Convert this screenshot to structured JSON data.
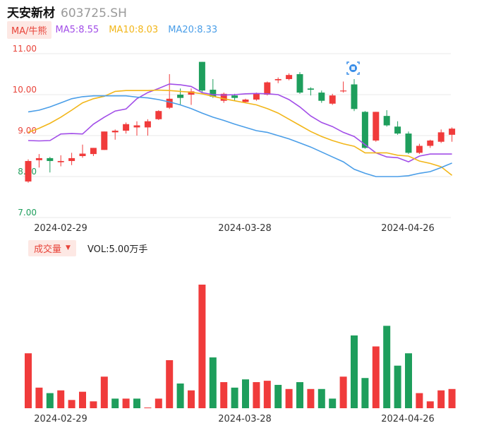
{
  "header": {
    "name": "天安新材",
    "code": "603725.SH"
  },
  "ma_bar": {
    "tag": "MA/牛熊",
    "items": [
      {
        "label": "MA5:8.55",
        "color": "#a24ee8"
      },
      {
        "label": "MA10:8.03",
        "color": "#f2b619"
      },
      {
        "label": "MA20:8.33",
        "color": "#4a9ee8"
      }
    ]
  },
  "volume_bar": {
    "tag": "成交量",
    "caret": "▼",
    "text": "VOL:5.00万手"
  },
  "colors": {
    "up": "#f03b3b",
    "down": "#1e9e5c",
    "grid": "#e8e8e8"
  },
  "chart_data": [
    {
      "type": "candlestick",
      "ylim": [
        7.0,
        11.0
      ],
      "y_ticks": [
        "11.00",
        "10.00",
        "9.00",
        "8.00",
        "7.00"
      ],
      "x_ticks": [
        "2024-02-29",
        "2024-03-28",
        "2024-04-26"
      ],
      "candles": [
        {
          "o": 7.88,
          "c": 8.38,
          "h": 8.42,
          "l": 7.85
        },
        {
          "o": 8.4,
          "c": 8.45,
          "h": 8.55,
          "l": 8.22
        },
        {
          "o": 8.45,
          "c": 8.38,
          "h": 8.48,
          "l": 8.1
        },
        {
          "o": 8.35,
          "c": 8.38,
          "h": 8.52,
          "l": 8.25
        },
        {
          "o": 8.38,
          "c": 8.45,
          "h": 8.58,
          "l": 8.28
        },
        {
          "o": 8.5,
          "c": 8.56,
          "h": 8.78,
          "l": 8.46
        },
        {
          "o": 8.55,
          "c": 8.7,
          "h": 8.7,
          "l": 8.5
        },
        {
          "o": 8.65,
          "c": 9.1,
          "h": 9.1,
          "l": 8.65
        },
        {
          "o": 9.08,
          "c": 9.12,
          "h": 9.15,
          "l": 8.9
        },
        {
          "o": 9.12,
          "c": 9.28,
          "h": 9.32,
          "l": 9.05
        },
        {
          "o": 9.2,
          "c": 9.25,
          "h": 9.35,
          "l": 9.0
        },
        {
          "o": 9.2,
          "c": 9.35,
          "h": 9.4,
          "l": 9.0
        },
        {
          "o": 9.4,
          "c": 9.6,
          "h": 9.62,
          "l": 9.38
        },
        {
          "o": 9.68,
          "c": 9.9,
          "h": 10.5,
          "l": 9.65
        },
        {
          "o": 10.0,
          "c": 9.92,
          "h": 10.15,
          "l": 9.75
        },
        {
          "o": 10.0,
          "c": 10.08,
          "h": 10.15,
          "l": 9.75
        },
        {
          "o": 10.8,
          "c": 10.1,
          "h": 10.8,
          "l": 10.05
        },
        {
          "o": 10.12,
          "c": 9.95,
          "h": 10.38,
          "l": 9.92
        },
        {
          "o": 9.85,
          "c": 10.02,
          "h": 10.05,
          "l": 9.8
        },
        {
          "o": 9.98,
          "c": 9.92,
          "h": 10.02,
          "l": 9.85
        },
        {
          "o": 9.82,
          "c": 9.88,
          "h": 9.9,
          "l": 9.8
        },
        {
          "o": 9.88,
          "c": 10.02,
          "h": 10.05,
          "l": 9.85
        },
        {
          "o": 10.0,
          "c": 10.3,
          "h": 10.32,
          "l": 9.98
        },
        {
          "o": 10.35,
          "c": 10.38,
          "h": 10.42,
          "l": 10.28
        },
        {
          "o": 10.38,
          "c": 10.48,
          "h": 10.52,
          "l": 10.35
        },
        {
          "o": 10.5,
          "c": 10.05,
          "h": 10.55,
          "l": 10.02
        },
        {
          "o": 10.15,
          "c": 10.12,
          "h": 10.18,
          "l": 9.98
        },
        {
          "o": 10.05,
          "c": 9.85,
          "h": 10.1,
          "l": 9.8
        },
        {
          "o": 9.78,
          "c": 9.98,
          "h": 10.02,
          "l": 9.75
        },
        {
          "o": 10.08,
          "c": 10.1,
          "h": 10.32,
          "l": 10.05
        },
        {
          "o": 10.25,
          "c": 9.65,
          "h": 10.38,
          "l": 9.6
        },
        {
          "o": 9.58,
          "c": 8.7,
          "h": 9.6,
          "l": 8.68
        },
        {
          "o": 8.88,
          "c": 9.58,
          "h": 9.58,
          "l": 8.85
        },
        {
          "o": 9.48,
          "c": 9.25,
          "h": 9.62,
          "l": 9.22
        },
        {
          "o": 9.22,
          "c": 9.05,
          "h": 9.35,
          "l": 9.02
        },
        {
          "o": 9.05,
          "c": 8.58,
          "h": 9.1,
          "l": 8.55
        },
        {
          "o": 8.58,
          "c": 8.75,
          "h": 8.8,
          "l": 8.55
        },
        {
          "o": 8.75,
          "c": 8.88,
          "h": 8.9,
          "l": 8.7
        },
        {
          "o": 8.85,
          "c": 9.08,
          "h": 9.15,
          "l": 8.82
        },
        {
          "o": 9.02,
          "c": 9.17,
          "h": 9.2,
          "l": 8.85
        }
      ],
      "ma5": [
        8.88,
        8.87,
        8.88,
        9.04,
        9.05,
        9.04,
        9.28,
        9.45,
        9.6,
        9.65,
        9.9,
        10.05,
        10.15,
        10.26,
        10.24,
        10.2,
        10.05,
        10.0,
        9.99,
        10.0,
        10.02,
        10.03,
        10.02,
        10.0,
        9.88,
        9.7,
        9.48,
        9.32,
        9.22,
        9.08,
        8.98,
        8.78,
        8.58,
        8.48,
        8.46,
        8.36,
        8.5,
        8.55,
        8.55,
        8.55
      ],
      "ma10": [
        9.08,
        9.18,
        9.3,
        9.45,
        9.62,
        9.8,
        9.9,
        9.96,
        10.08,
        10.1,
        10.1,
        10.1,
        10.11,
        10.1,
        10.08,
        10.06,
        10.02,
        9.96,
        9.9,
        9.85,
        9.8,
        9.75,
        9.66,
        9.55,
        9.4,
        9.25,
        9.1,
        8.98,
        8.88,
        8.8,
        8.74,
        8.58,
        8.58,
        8.58,
        8.52,
        8.5,
        8.38,
        8.32,
        8.24,
        8.03
      ],
      "ma20": [
        9.58,
        9.62,
        9.7,
        9.8,
        9.9,
        9.95,
        9.97,
        9.97,
        9.97,
        9.97,
        9.94,
        9.92,
        9.88,
        9.82,
        9.75,
        9.66,
        9.55,
        9.45,
        9.37,
        9.28,
        9.2,
        9.12,
        9.08,
        9.0,
        8.92,
        8.82,
        8.72,
        8.6,
        8.48,
        8.36,
        8.18,
        8.08,
        8.0,
        8.0,
        8.0,
        8.02,
        8.08,
        8.12,
        8.22,
        8.33
      ]
    },
    {
      "type": "bar",
      "x_ticks": [
        "2024-02-29",
        "2024-03-28",
        "2024-04-26"
      ],
      "values": [
        40,
        15,
        11,
        13,
        6,
        12,
        5,
        23,
        7,
        7,
        7,
        0.5,
        7,
        35,
        18,
        13,
        90,
        37,
        19,
        15,
        21,
        19,
        20,
        17,
        14,
        19,
        14,
        14,
        7,
        23,
        53,
        22,
        45,
        60,
        31,
        40,
        11,
        5,
        13,
        14
      ],
      "up": [
        true,
        true,
        false,
        true,
        true,
        true,
        true,
        true,
        false,
        true,
        false,
        true,
        true,
        true,
        false,
        true,
        true,
        false,
        true,
        false,
        false,
        true,
        true,
        false,
        true,
        false,
        true,
        false,
        false,
        true,
        false,
        false,
        true,
        false,
        false,
        false,
        true,
        true,
        true,
        true
      ]
    }
  ]
}
